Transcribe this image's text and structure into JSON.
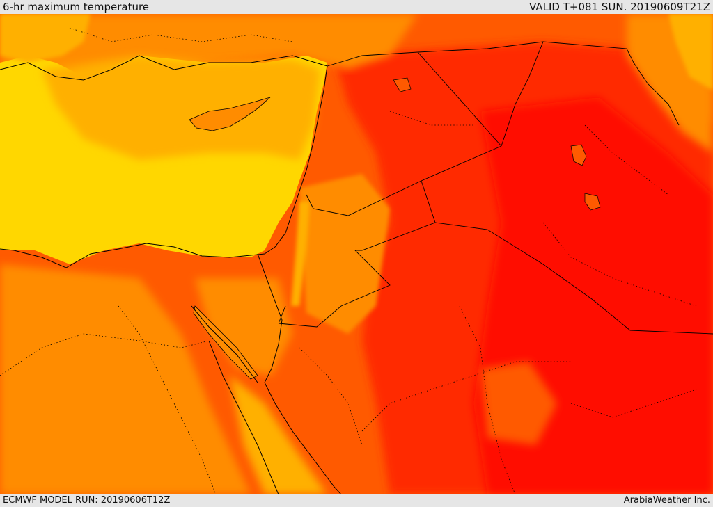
{
  "header": {
    "title": "6-hr maximum temperature",
    "valid_time": "VALID T+081 SUN. 20190609T21Z"
  },
  "footer": {
    "model_run": "ECMWF MODEL RUN: 20190606T12Z",
    "credit": "ArabiaWeather Inc."
  },
  "map": {
    "type": "filled-contour temperature map",
    "palette": [
      "#ffd700",
      "#ffb000",
      "#ff8c00",
      "#ff5a00",
      "#ff2a00",
      "#ff0a00"
    ],
    "sea_color": "#ffd700"
  }
}
